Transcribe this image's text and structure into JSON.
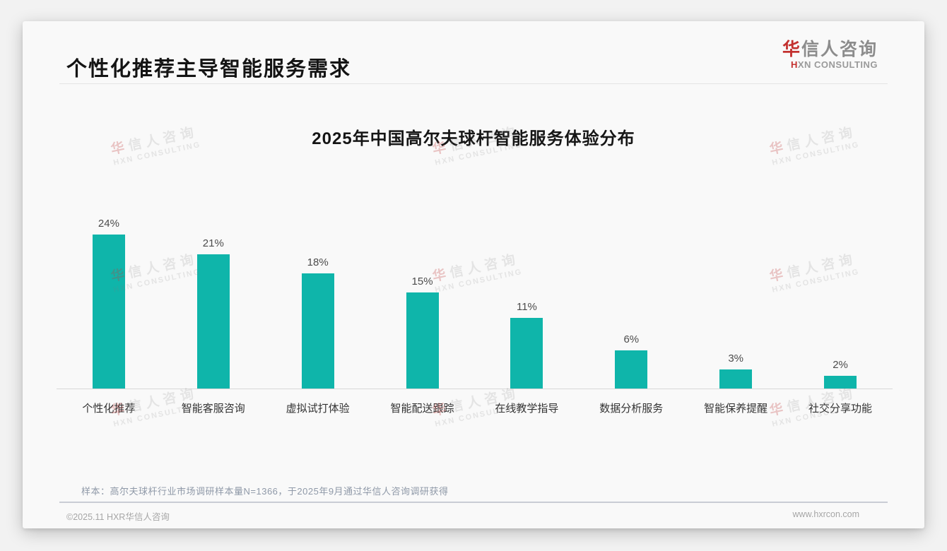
{
  "page": {
    "header_title": "个性化推荐主导智能服务需求",
    "sample_note": "样本：高尔夫球杆行业市场调研样本量N=1366，于2025年9月通过华信人咨询调研获得",
    "footer_left": "©2025.11 HXR华信人咨询",
    "footer_right": "www.hxrcon.com"
  },
  "logo": {
    "cn_first": "华",
    "cn_rest": "信人咨询",
    "en_first": "H",
    "en_rest": "XN CONSULTING"
  },
  "watermark": {
    "cn_first": "华",
    "cn_rest": "信人咨询",
    "en": "HXN CONSULTING"
  },
  "colors": {
    "bar": "#0fb5aa",
    "accent_red": "#c3312f"
  },
  "chart_data": {
    "type": "bar",
    "title": "2025年中国高尔夫球杆智能服务体验分布",
    "categories": [
      "个性化推荐",
      "智能客服咨询",
      "虚拟试打体验",
      "智能配送跟踪",
      "在线教学指导",
      "数据分析服务",
      "智能保养提醒",
      "社交分享功能"
    ],
    "values": [
      24,
      21,
      18,
      15,
      11,
      6,
      3,
      2
    ],
    "value_labels": [
      "24%",
      "21%",
      "18%",
      "15%",
      "11%",
      "6%",
      "3%",
      "2%"
    ],
    "xlabel": "",
    "ylabel": "",
    "ylim": [
      0,
      26
    ],
    "grid": false,
    "legend": "none",
    "bar_color": "#0fb5aa"
  }
}
